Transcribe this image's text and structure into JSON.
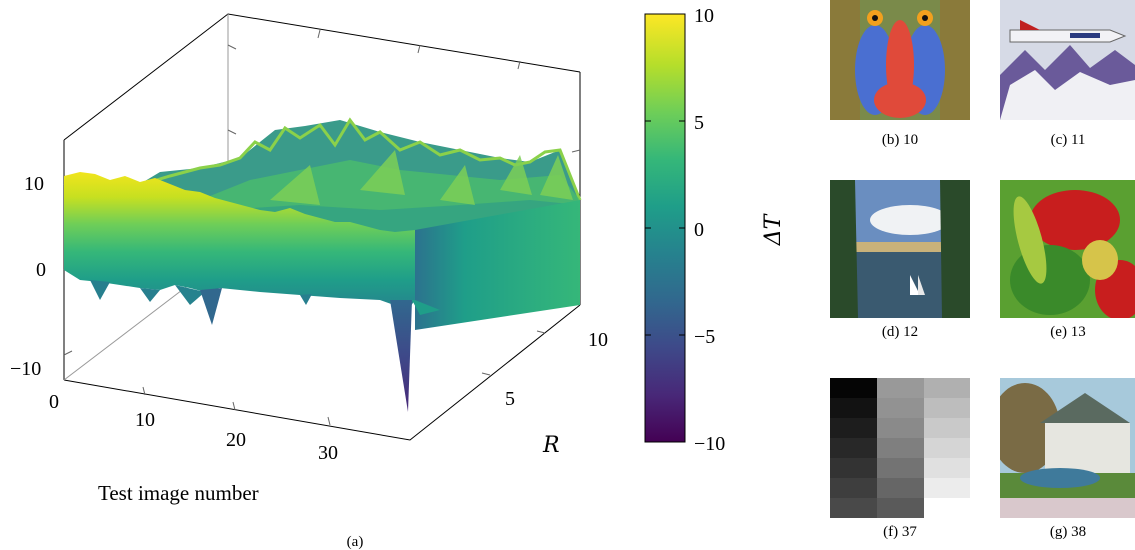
{
  "chart_data": {
    "type": "surface3d",
    "x_axis": {
      "label": "Test image number",
      "ticks": [
        0,
        10,
        20,
        30
      ],
      "range": [
        0,
        38
      ]
    },
    "y_axis": {
      "label": "R",
      "ticks": [
        5,
        10
      ],
      "range": [
        1,
        11
      ]
    },
    "z_axis": {
      "ticks": [
        -10,
        0,
        10
      ],
      "range": [
        -12,
        14
      ]
    },
    "colorbar": {
      "label": "ΔT",
      "ticks": [
        -10,
        -5,
        0,
        5,
        10
      ],
      "range": [
        -10,
        10
      ],
      "colormap": "viridis"
    },
    "front_edge_at_R_min": [
      [
        0,
        10.2
      ],
      [
        2,
        9.6
      ],
      [
        4,
        10.0
      ],
      [
        6,
        9.4
      ],
      [
        8,
        9.0
      ],
      [
        10,
        8.6
      ],
      [
        12,
        8.4
      ],
      [
        14,
        8.2
      ],
      [
        16,
        8.0
      ],
      [
        18,
        7.8
      ],
      [
        20,
        7.5
      ],
      [
        22,
        7.2
      ],
      [
        24,
        6.8
      ],
      [
        26,
        6.4
      ],
      [
        28,
        6.0
      ],
      [
        30,
        5.6
      ],
      [
        32,
        5.2
      ],
      [
        34,
        4.8
      ],
      [
        36,
        4.4
      ],
      [
        38,
        4.0
      ]
    ],
    "notable_minimum": {
      "image": 35,
      "R": 1,
      "delta_T": -12.5
    },
    "caption": "(a)"
  },
  "thumbnails": [
    {
      "caption": "(b) 10",
      "colors": [
        "#4a6fd1",
        "#e04a3a",
        "#c9a64a"
      ]
    },
    {
      "caption": "(c) 11",
      "colors": [
        "#d6dae6",
        "#6a5a9a",
        "#ffffff"
      ]
    },
    {
      "caption": "(d) 12",
      "colors": [
        "#6a8ec0",
        "#2a4a2a",
        "#c9b27a"
      ]
    },
    {
      "caption": "(e) 13",
      "colors": [
        "#c81e1e",
        "#5aa031",
        "#d6c44a"
      ]
    },
    {
      "caption": "(f) 37",
      "colors": [
        "#111111",
        "#808080",
        "#e6e6e6"
      ]
    },
    {
      "caption": "(g) 38",
      "colors": [
        "#3f7a9b",
        "#7a6b45",
        "#a7c9db"
      ]
    }
  ],
  "colors": {
    "viridis": [
      "#440154",
      "#482878",
      "#3e4989",
      "#31688e",
      "#26828e",
      "#1f9e89",
      "#35b779",
      "#6ece58",
      "#b5de2b",
      "#fde725"
    ]
  }
}
